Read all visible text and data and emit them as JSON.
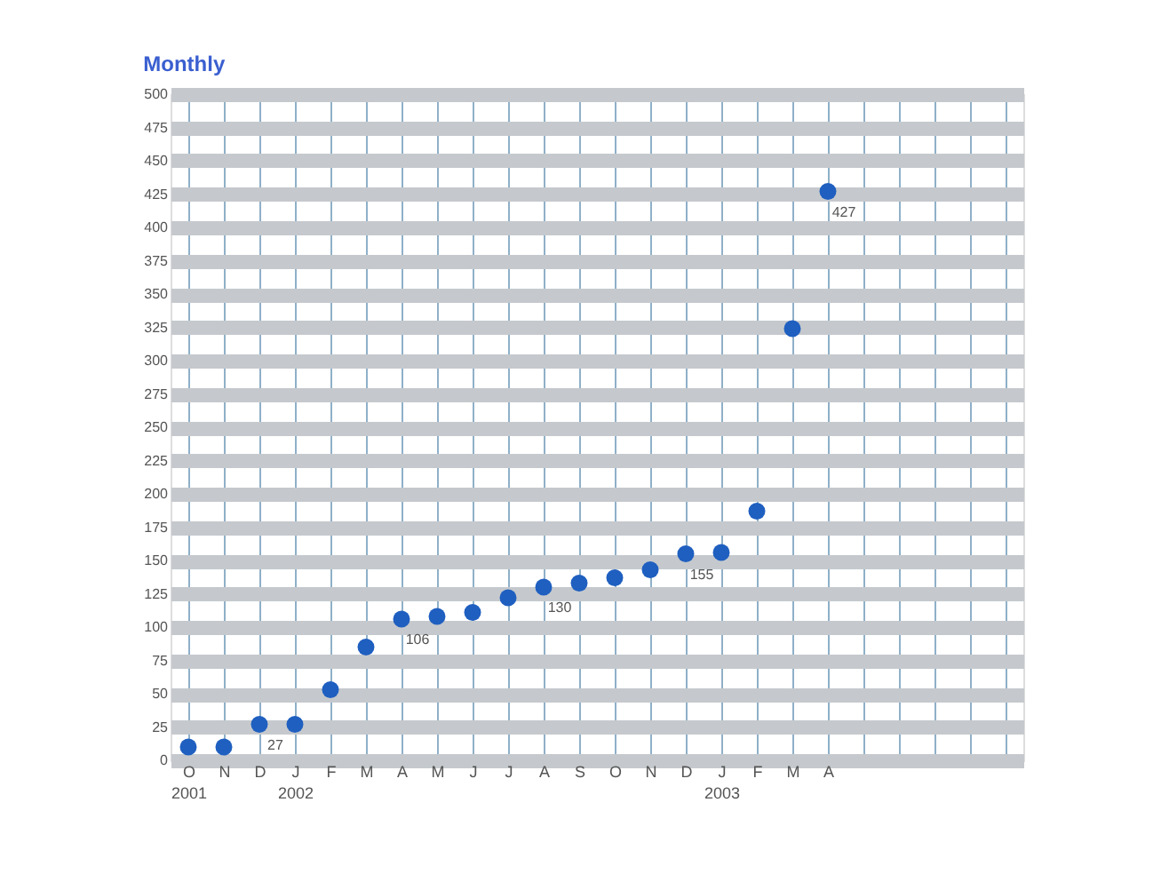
{
  "chart_data": {
    "type": "scatter",
    "title": "Monthly",
    "categories": [
      "O\n2001",
      "N",
      "D",
      "J\n2002",
      "F",
      "M",
      "A",
      "M",
      "J",
      "J",
      "A",
      "S",
      "O",
      "N",
      "D",
      "J\n2003",
      "F",
      "M",
      "A",
      null,
      null,
      null,
      null,
      null
    ],
    "series": [
      {
        "color": "#1f5fc0",
        "values": [
          10,
          10,
          27,
          27,
          53,
          85,
          106,
          108,
          111,
          122,
          130,
          133,
          137,
          143,
          155,
          156,
          187,
          324,
          427,
          null,
          null,
          null,
          null,
          null
        ],
        "value_labels": [
          null,
          null,
          "27",
          null,
          null,
          null,
          "106",
          null,
          null,
          null,
          "130",
          null,
          null,
          null,
          "155",
          null,
          null,
          null,
          "427",
          null,
          null,
          null,
          null,
          null
        ]
      }
    ],
    "ylim": [
      0,
      500
    ],
    "yticks": [
      0,
      25,
      50,
      75,
      100,
      125,
      150,
      175,
      200,
      225,
      250,
      275,
      300,
      325,
      350,
      375,
      400,
      425,
      450,
      475,
      500
    ],
    "grid": true,
    "marker": "circle"
  }
}
